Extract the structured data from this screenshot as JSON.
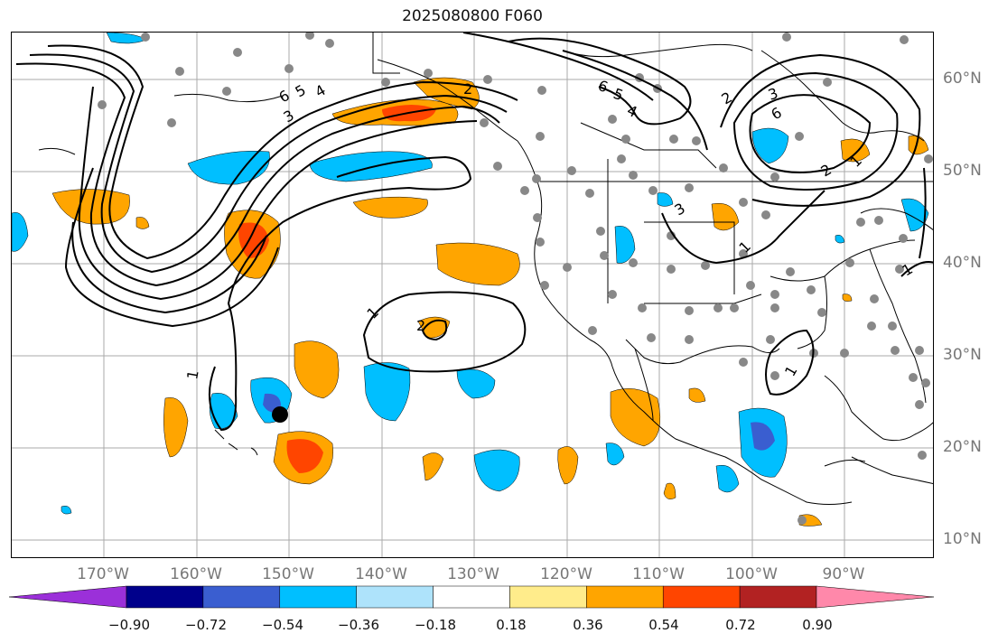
{
  "title": "2025080800 F060",
  "lon_labels": [
    "170°W",
    "160°W",
    "150°W",
    "140°W",
    "130°W",
    "120°W",
    "110°W",
    "100°W",
    "90°W"
  ],
  "lat_labels": [
    "60°N",
    "50°N",
    "40°N",
    "30°N",
    "20°N",
    "10°N"
  ],
  "colorbar": {
    "tick_labels": [
      "−0.90",
      "−0.72",
      "−0.54",
      "−0.36",
      "−0.18",
      "0.18",
      "0.36",
      "0.54",
      "0.72",
      "0.90"
    ],
    "colors": [
      "#9b30d9",
      "#00008b",
      "#3a5ed0",
      "#00bfff",
      "#aee3fb",
      "#ffffff",
      "#ffec8b",
      "#ffa500",
      "#ff4500",
      "#b22222",
      "#ff88aa"
    ]
  },
  "contour_labels": [
    "6",
    "5",
    "4",
    "3",
    "2",
    "1",
    "6",
    "5",
    "4",
    "3",
    "2",
    "1",
    "2",
    "1",
    "1",
    "1",
    "3",
    "6",
    "2",
    "1"
  ],
  "point_marker": "black-dot"
}
